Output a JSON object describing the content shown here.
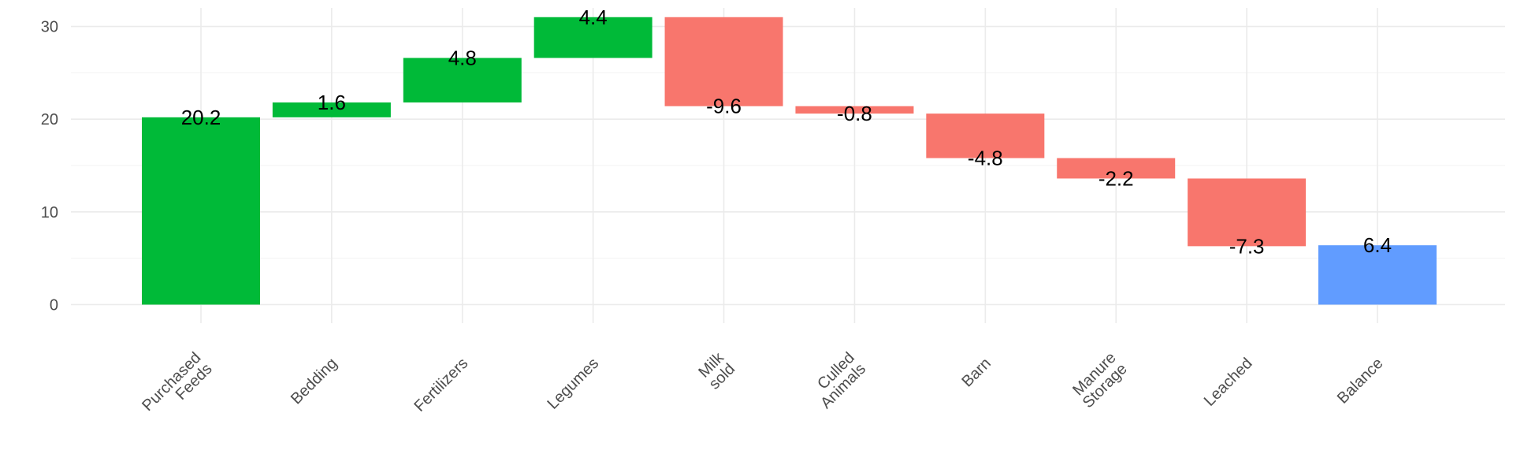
{
  "chart_data": {
    "type": "bar",
    "subtype": "waterfall",
    "title": "",
    "xlabel": "",
    "ylabel": "",
    "ylim": [
      -2,
      32
    ],
    "yticks": [
      0,
      10,
      20,
      30
    ],
    "grid": true,
    "legend": "none",
    "categories": [
      [
        "Purchased",
        "Feeds"
      ],
      [
        "Bedding"
      ],
      [
        "Fertilizers"
      ],
      [
        "Legumes"
      ],
      [
        "Milk",
        "sold"
      ],
      [
        "Culled",
        "Animals"
      ],
      [
        "Barn"
      ],
      [
        "Manure",
        "Storage"
      ],
      [
        "Leached"
      ],
      [
        "Balance"
      ]
    ],
    "values": [
      20.2,
      1.6,
      4.8,
      4.4,
      -9.6,
      -0.8,
      -4.8,
      -2.2,
      -7.3,
      6.4
    ],
    "value_labels": [
      "20.2",
      "1.6",
      "4.8",
      "4.4",
      "-9.6",
      "-0.8",
      "-4.8",
      "-2.2",
      "-7.3",
      "6.4"
    ],
    "bar_types": [
      "in",
      "in",
      "in",
      "in",
      "out",
      "out",
      "out",
      "out",
      "out",
      "total"
    ],
    "colors": {
      "in": "#00ba38",
      "out": "#f8766d",
      "total": "#619cff"
    }
  }
}
